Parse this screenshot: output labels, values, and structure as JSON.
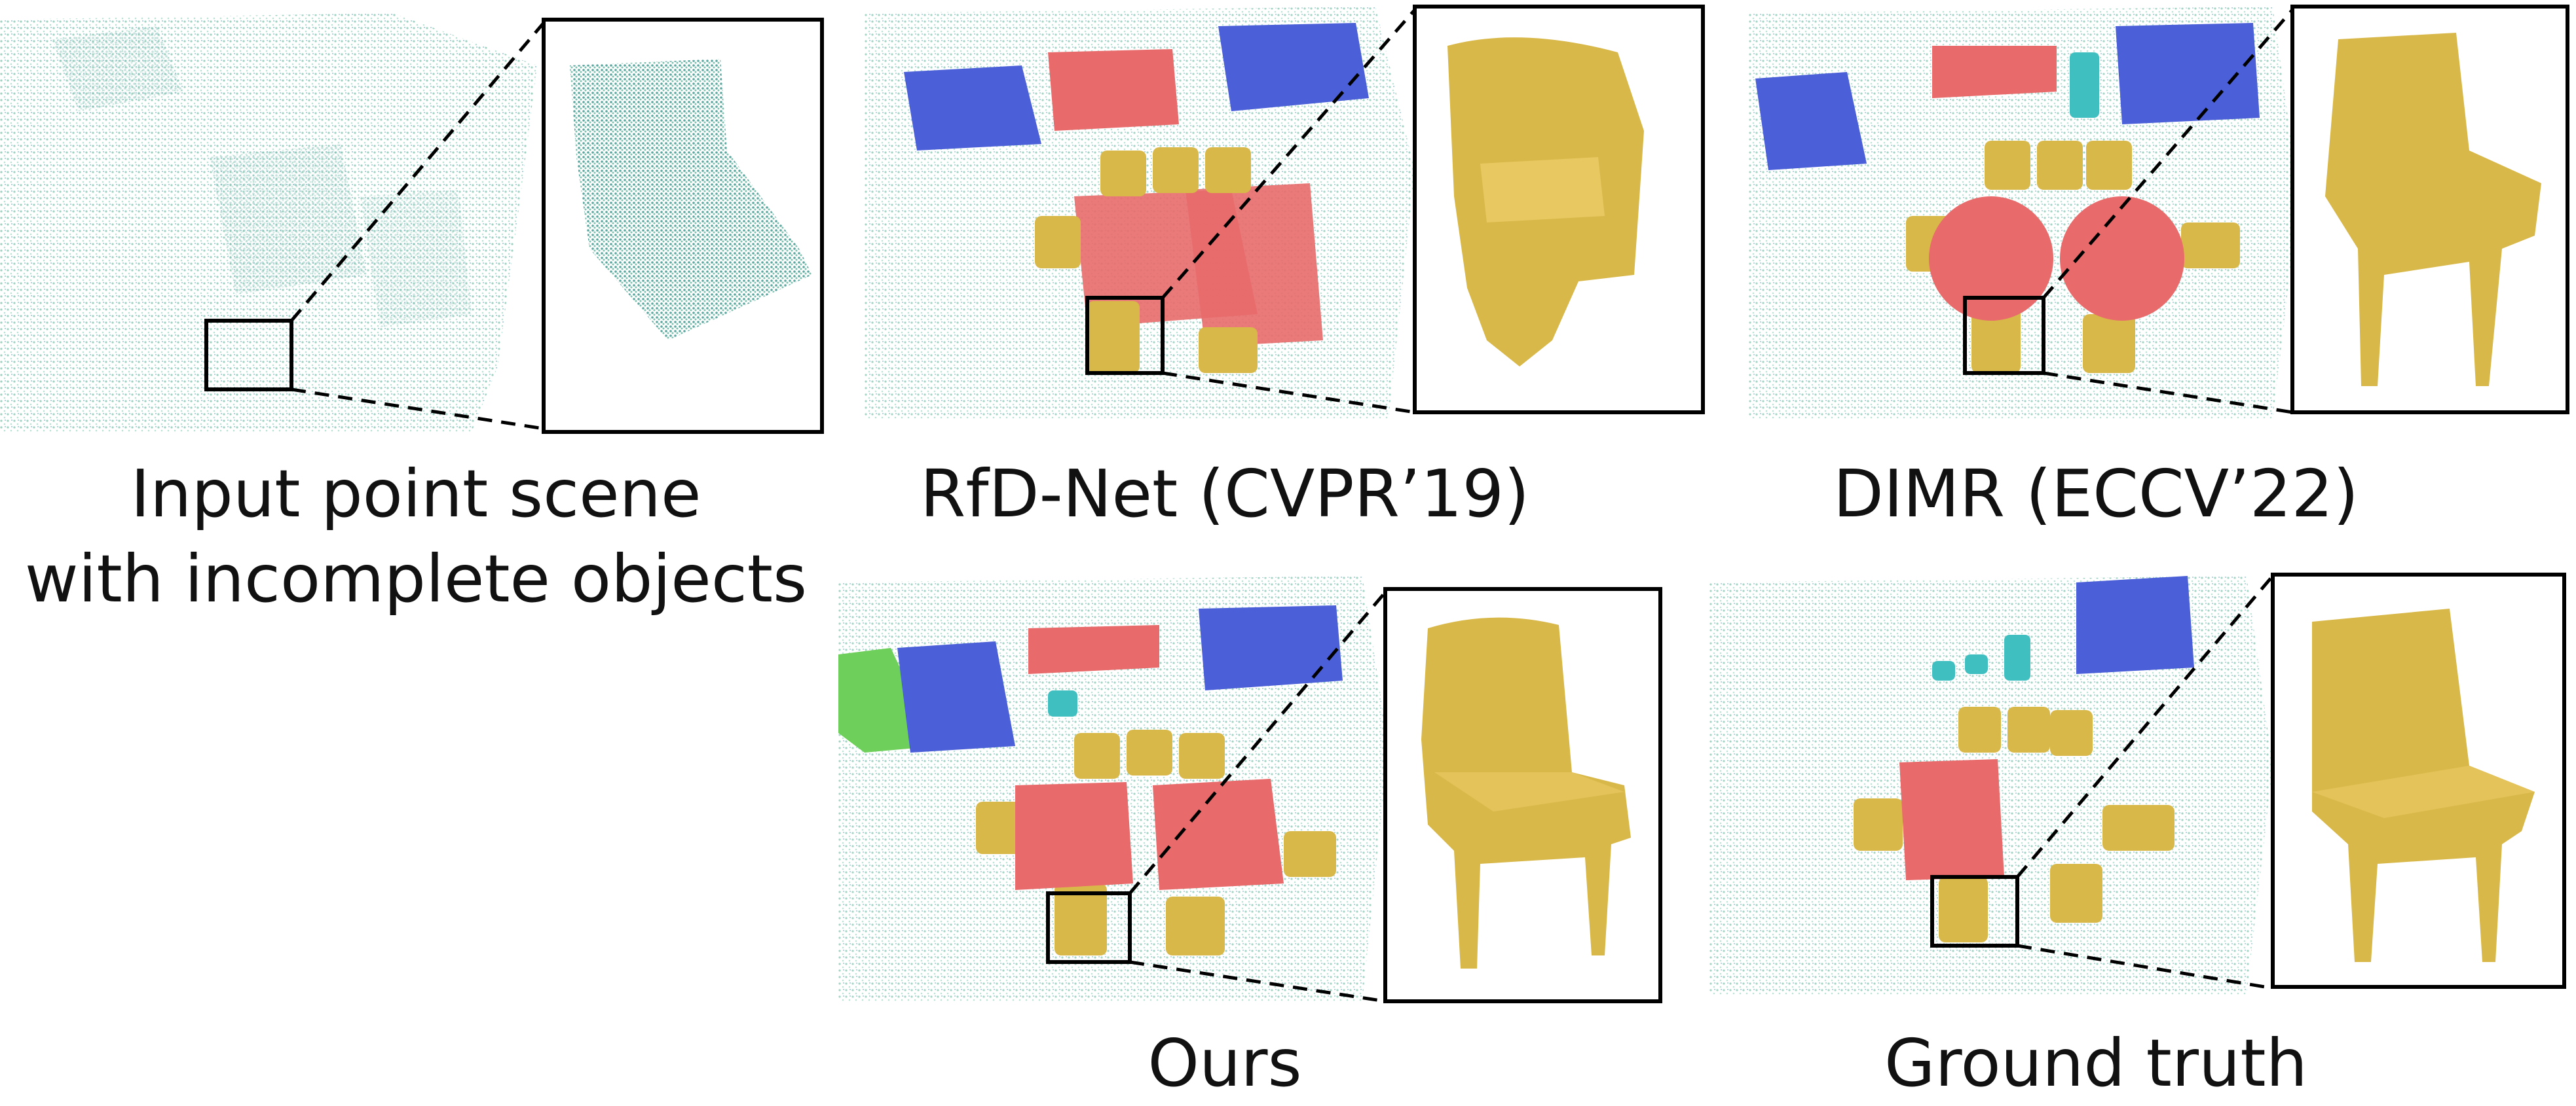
{
  "figure": {
    "panels": [
      {
        "id": "input",
        "caption_lines": [
          "Input point scene",
          "with incomplete objects"
        ]
      },
      {
        "id": "rfdnet",
        "caption_lines": [
          "RfD-Net (CVPR’19)"
        ]
      },
      {
        "id": "dimr",
        "caption_lines": [
          "DIMR (ECCV’22)"
        ]
      },
      {
        "id": "ours",
        "caption_lines": [
          "Ours"
        ]
      },
      {
        "id": "gt",
        "caption_lines": [
          "Ground truth"
        ]
      }
    ]
  },
  "colors": {
    "point_cloud": "#9fd4c4",
    "table": "#e86a6a",
    "cabinet": "#4a5fd8",
    "chair": "#d9b84a",
    "bin": "#3fbfc0",
    "sofa": "#6ed05a",
    "frame": "#000000"
  }
}
